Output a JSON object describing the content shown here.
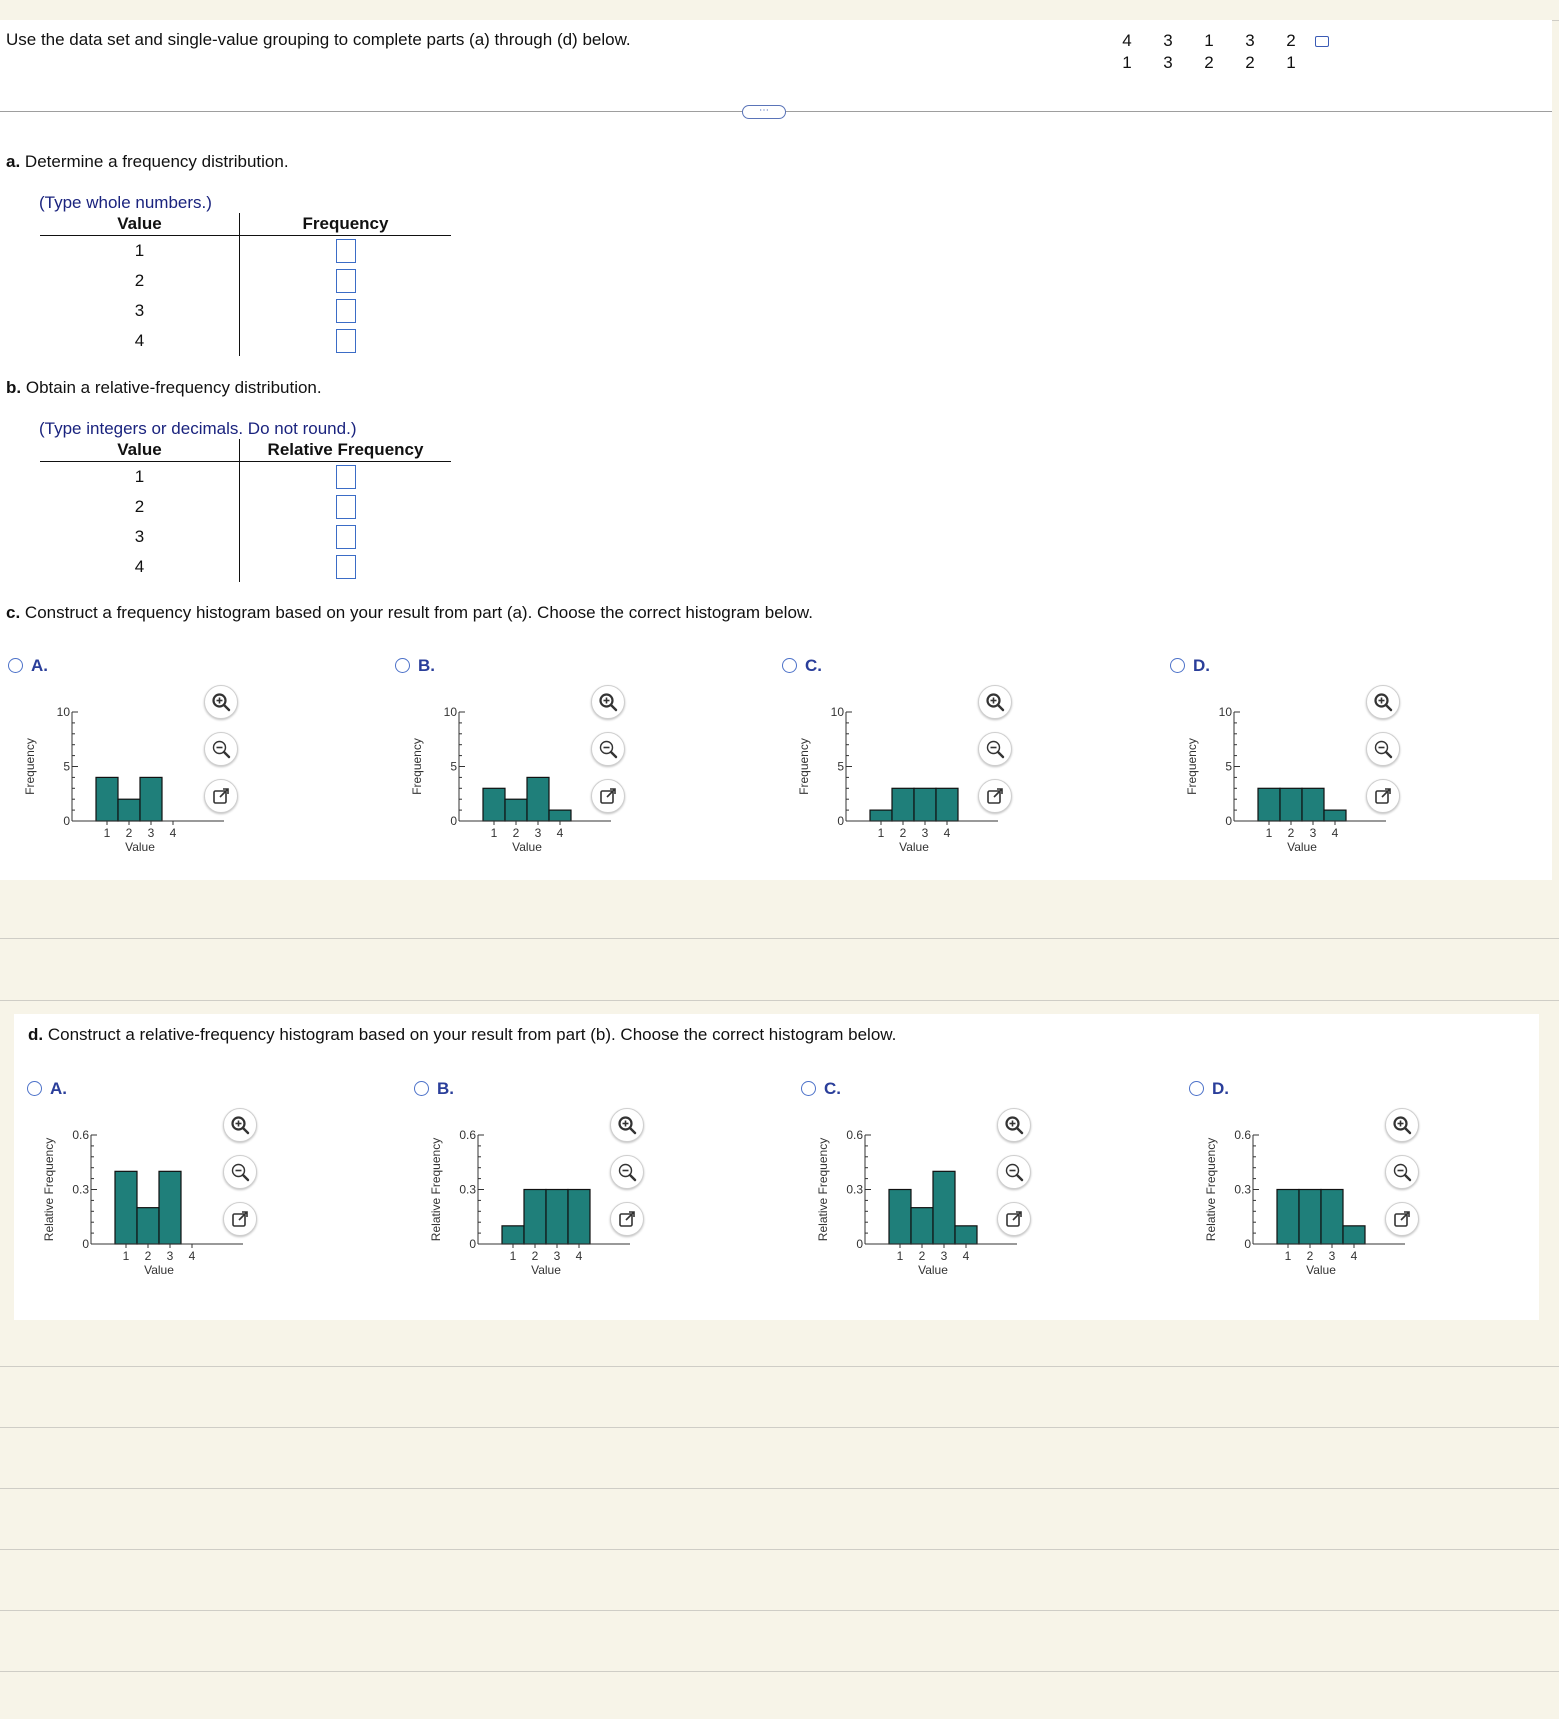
{
  "instruction": "Use the data set and single-value grouping to complete parts (a) through (d) below.",
  "data_set": [
    [
      "4",
      "3",
      "1",
      "3",
      "2"
    ],
    [
      "1",
      "3",
      "2",
      "2",
      "1"
    ]
  ],
  "more_label": "⋯",
  "part_a": {
    "label": "a.",
    "text": "Determine a frequency distribution.",
    "hint": "(Type whole numbers.)",
    "col_value": "Value",
    "col_freq": "Frequency",
    "values": [
      "1",
      "2",
      "3",
      "4"
    ]
  },
  "part_b": {
    "label": "b.",
    "text": "Obtain a relative-frequency distribution.",
    "hint": "(Type integers or decimals. Do not round.)",
    "col_value": "Value",
    "col_freq": "Relative Frequency",
    "values": [
      "1",
      "2",
      "3",
      "4"
    ]
  },
  "part_c": {
    "label": "c.",
    "text": "Construct a frequency histogram based on your result from part (a). Choose the correct histogram below."
  },
  "part_d": {
    "label": "d.",
    "text": "Construct a relative-frequency histogram based on your result from part (b). Choose the correct histogram below."
  },
  "icons": [
    "zoom-in-icon",
    "zoom-out-icon",
    "open-external-icon",
    "copy-icon"
  ],
  "bar_color": "#1f7f7a",
  "chart_data": [
    {
      "type": "bar",
      "option": "A.",
      "categories": [
        "1",
        "2",
        "3",
        "4"
      ],
      "values": [
        4,
        2,
        4,
        0
      ],
      "xlabel": "Value",
      "ylabel": "Frequency",
      "ylim": [
        0,
        10
      ],
      "yticks": [
        "0",
        "5",
        "10"
      ]
    },
    {
      "type": "bar",
      "option": "B.",
      "categories": [
        "1",
        "2",
        "3",
        "4"
      ],
      "values": [
        3,
        2,
        4,
        1
      ],
      "xlabel": "Value",
      "ylabel": "Frequency",
      "ylim": [
        0,
        10
      ],
      "yticks": [
        "0",
        "5",
        "10"
      ]
    },
    {
      "type": "bar",
      "option": "C.",
      "categories": [
        "1",
        "2",
        "3",
        "4"
      ],
      "values": [
        1,
        3,
        3,
        3
      ],
      "xlabel": "Value",
      "ylabel": "Frequency",
      "ylim": [
        0,
        10
      ],
      "yticks": [
        "0",
        "5",
        "10"
      ]
    },
    {
      "type": "bar",
      "option": "D.",
      "categories": [
        "1",
        "2",
        "3",
        "4"
      ],
      "values": [
        3,
        3,
        3,
        1
      ],
      "xlabel": "Value",
      "ylabel": "Frequency",
      "ylim": [
        0,
        10
      ],
      "yticks": [
        "0",
        "5",
        "10"
      ]
    },
    {
      "type": "bar",
      "option": "A.",
      "categories": [
        "1",
        "2",
        "3",
        "4"
      ],
      "values": [
        0.4,
        0.2,
        0.4,
        0
      ],
      "xlabel": "Value",
      "ylabel": "Relative Frequency",
      "ylim": [
        0,
        0.6
      ],
      "yticks": [
        "0",
        "0.3",
        "0.6"
      ]
    },
    {
      "type": "bar",
      "option": "B.",
      "categories": [
        "1",
        "2",
        "3",
        "4"
      ],
      "values": [
        0.1,
        0.3,
        0.3,
        0.3
      ],
      "xlabel": "Value",
      "ylabel": "Relative Frequency",
      "ylim": [
        0,
        0.6
      ],
      "yticks": [
        "0",
        "0.3",
        "0.6"
      ]
    },
    {
      "type": "bar",
      "option": "C.",
      "categories": [
        "1",
        "2",
        "3",
        "4"
      ],
      "values": [
        0.3,
        0.2,
        0.4,
        0.1
      ],
      "xlabel": "Value",
      "ylabel": "Relative Frequency",
      "ylim": [
        0,
        0.6
      ],
      "yticks": [
        "0",
        "0.3",
        "0.6"
      ]
    },
    {
      "type": "bar",
      "option": "D.",
      "categories": [
        "1",
        "2",
        "3",
        "4"
      ],
      "values": [
        0.3,
        0.3,
        0.3,
        0.1
      ],
      "xlabel": "Value",
      "ylabel": "Relative Frequency",
      "ylim": [
        0,
        0.6
      ],
      "yticks": [
        "0",
        "0.3",
        "0.6"
      ]
    }
  ]
}
